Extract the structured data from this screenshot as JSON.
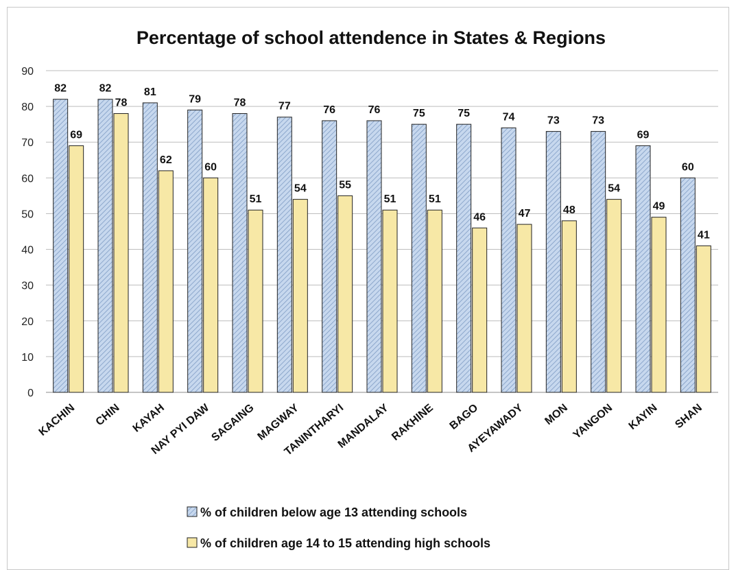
{
  "chart_data": {
    "type": "bar",
    "title": "Percentage of school attendence in States & Regions",
    "xlabel": "",
    "ylabel": "",
    "ylim": [
      0,
      90
    ],
    "yticks": [
      "0",
      "10",
      "20",
      "30",
      "40",
      "50",
      "60",
      "70",
      "80",
      "90"
    ],
    "grid": true,
    "legend_position": "bottom",
    "categories": [
      "KACHIN",
      "CHIN",
      "KAYAH",
      "NAY PYI DAW",
      "SAGAING",
      "MAGWAY",
      "TANINTHARYI",
      "MANDALAY",
      "RAKHINE",
      "BAGO",
      "AYEYAWADY",
      "MON",
      "YANGON",
      "KAYIN",
      "SHAN"
    ],
    "series": [
      {
        "name": "% of children below age 13 attending schools",
        "color": "#b9cde6",
        "pattern": "diagonal-hatch",
        "values": [
          82,
          82,
          81,
          79,
          78,
          77,
          76,
          76,
          75,
          75,
          74,
          73,
          73,
          69,
          60
        ],
        "labels": [
          "82",
          "82",
          "81",
          "79",
          "78",
          "77",
          "76",
          "76",
          "75",
          "75",
          "74",
          "73",
          "73",
          "69",
          "60"
        ]
      },
      {
        "name": "% of children age 14 to 15 attending high schools",
        "color": "#f7e8a6",
        "pattern": "solid",
        "values": [
          69,
          78,
          62,
          60,
          51,
          54,
          55,
          51,
          51,
          46,
          47,
          48,
          54,
          49,
          41
        ],
        "labels": [
          "69",
          "78",
          "62",
          "60",
          "51",
          "54",
          "55",
          "51",
          "51",
          "46",
          "47",
          "48",
          "54",
          "49",
          "41"
        ]
      }
    ]
  }
}
